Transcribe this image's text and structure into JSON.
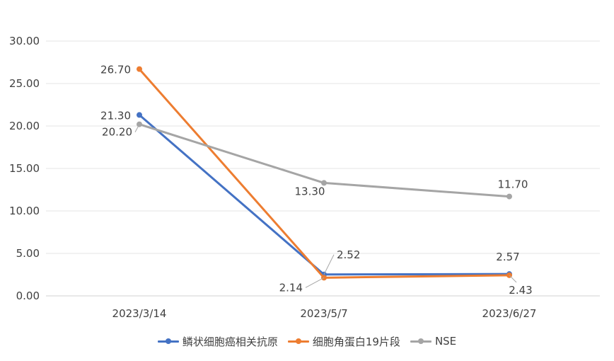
{
  "chart_data": {
    "type": "line",
    "title": "",
    "xlabel": "",
    "ylabel": "",
    "ylim": [
      0,
      30
    ],
    "yticks": [
      "0.00",
      "5.00",
      "10.00",
      "15.00",
      "20.00",
      "25.00",
      "30.00"
    ],
    "grid": true,
    "legend_position": "bottom",
    "categories": [
      "2023/3/14",
      "2023/5/7",
      "2023/6/27"
    ],
    "series": [
      {
        "name": "鳞状细胞癌相关抗原",
        "color": "#4472C4",
        "values": [
          21.3,
          2.52,
          2.57
        ],
        "labels": [
          "21.30",
          "2.52",
          "2.57"
        ]
      },
      {
        "name": "细胞角蛋白19片段",
        "color": "#ED7D31",
        "values": [
          26.7,
          2.14,
          2.43
        ],
        "labels": [
          "26.70",
          "2.14",
          "2.43"
        ]
      },
      {
        "name": "NSE",
        "color": "#A5A5A5",
        "values": [
          20.2,
          13.3,
          11.7
        ],
        "labels": [
          "20.20",
          "13.30",
          "11.70"
        ]
      }
    ]
  }
}
